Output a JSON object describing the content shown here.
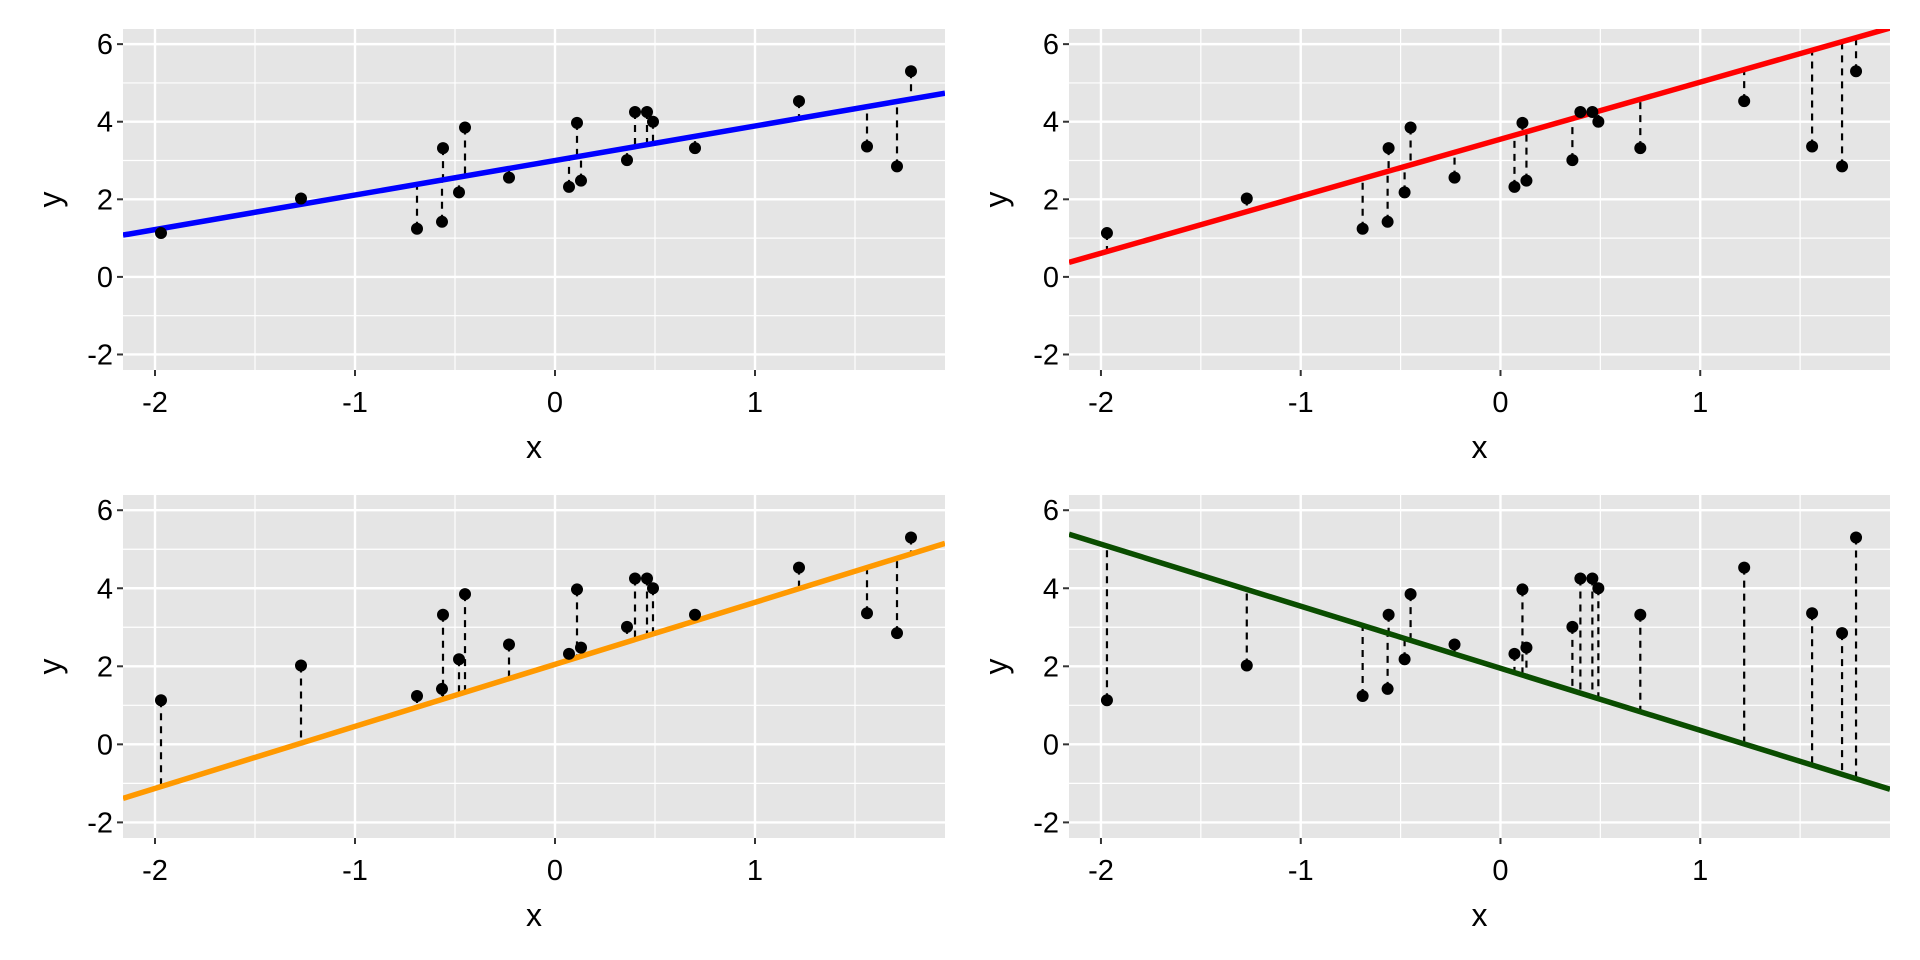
{
  "chart_data": {
    "type": "scatter",
    "layout": "2x2 grid",
    "points": {
      "x": [
        -1.97,
        -1.27,
        -0.69,
        -0.565,
        -0.56,
        -0.48,
        -0.45,
        -0.23,
        0.07,
        0.11,
        0.13,
        0.36,
        0.4,
        0.46,
        0.49,
        0.7,
        1.22,
        1.56,
        1.71,
        1.78
      ],
      "y": [
        1.13,
        2.02,
        1.24,
        1.42,
        3.32,
        2.18,
        3.85,
        2.56,
        2.32,
        3.97,
        2.48,
        3.01,
        4.25,
        4.25,
        4.0,
        3.32,
        4.53,
        3.36,
        2.85,
        5.3
      ]
    },
    "panels": [
      {
        "position": "top-left",
        "line": {
          "intercept": 3.0,
          "slope": 0.89,
          "color": "#0000ff"
        },
        "xlabel": "x",
        "ylabel": "y"
      },
      {
        "position": "top-right",
        "line": {
          "intercept": 3.55,
          "slope": 1.47,
          "color": "#ff0000"
        },
        "xlabel": "x",
        "ylabel": "y"
      },
      {
        "position": "bottom-left",
        "line": {
          "intercept": 2.05,
          "slope": 1.59,
          "color": "#ff9900"
        },
        "xlabel": "x",
        "ylabel": "y"
      },
      {
        "position": "bottom-right",
        "line": {
          "intercept": 1.95,
          "slope": -1.59,
          "color": "#0a4d00"
        },
        "xlabel": "x",
        "ylabel": "y"
      }
    ],
    "residuals": "dashed vertical segments from each point to the fitted line",
    "xlim": [
      -2.16,
      1.95
    ],
    "ylim": [
      -2.4,
      6.39
    ],
    "xticks": [
      "-2",
      "-1",
      "0",
      "1"
    ],
    "xtick_values": [
      -2,
      -1,
      0,
      1
    ],
    "yticks": [
      "-2",
      "0",
      "2",
      "4",
      "6"
    ],
    "ytick_values": [
      -2,
      0,
      2,
      4,
      6
    ],
    "grid": true,
    "legend": "none"
  }
}
